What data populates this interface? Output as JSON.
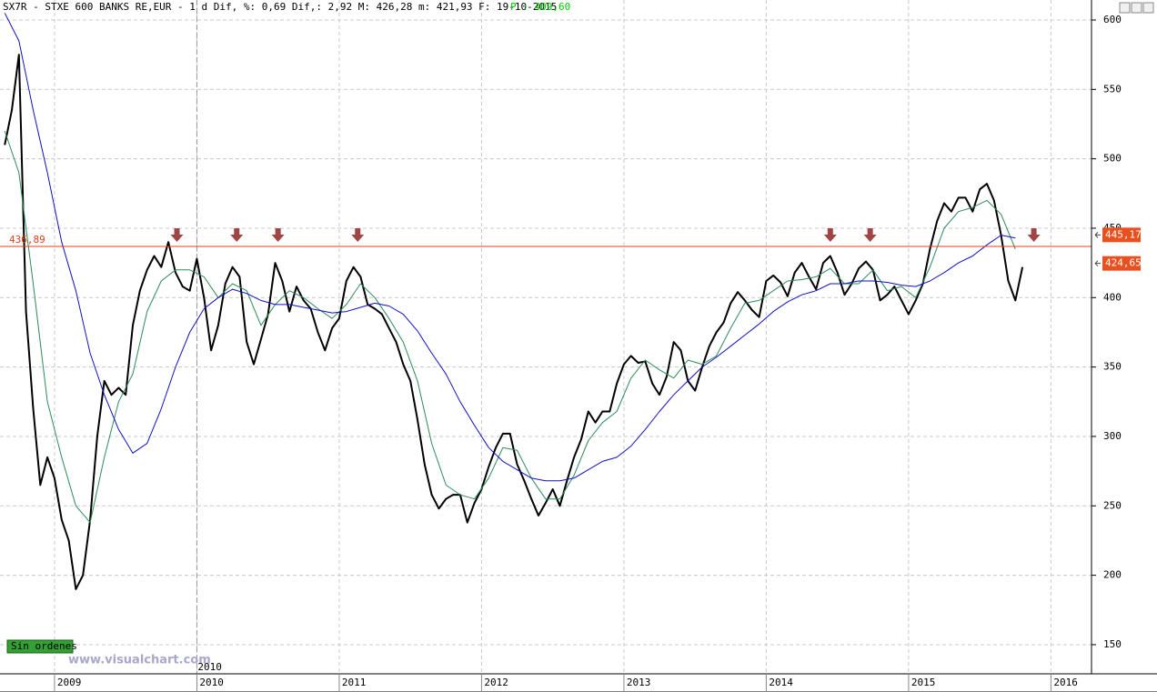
{
  "chart_data": {
    "type": "line",
    "title": "SX7R - STXE 600 BANKS RE,EUR -  1 d Dif, %: 0,69 Dif,: 2,92 M: 426,28 m: 421,93 F: 19-10-2015",
    "price_label": "P : 409,60",
    "status": "Sin ordenes",
    "watermark": "www.visualchart.com",
    "cursor": {
      "value": 2010,
      "label": "2010"
    },
    "xlim": [
      2008.617,
      2016.285
    ],
    "ylim": [
      129,
      614.4
    ],
    "xticks": [
      2009,
      2010,
      2011,
      2012,
      2013,
      2014,
      2015,
      2016
    ],
    "yticks": [
      150,
      200,
      250,
      300,
      350,
      400,
      450,
      500,
      550,
      600
    ],
    "grid": true,
    "level": {
      "value": 436.89,
      "label": "436,89",
      "color": "#e0401a"
    },
    "price_tags": [
      {
        "value": 445.17,
        "label": "445,17"
      },
      {
        "value": 424.65,
        "label": "424,65"
      }
    ],
    "arrows": [
      2009.86,
      2010.28,
      2010.57,
      2011.13,
      2014.45,
      2014.73,
      2015.88
    ],
    "series": [
      {
        "color": "#000000",
        "x": [
          2008.65,
          2008.7,
          2008.75,
          2008.8,
          2008.85,
          2008.9,
          2008.95,
          2009,
          2009.05,
          2009.1,
          2009.15,
          2009.2,
          2009.25,
          2009.3,
          2009.35,
          2009.4,
          2009.45,
          2009.5,
          2009.55,
          2009.6,
          2009.65,
          2009.7,
          2009.75,
          2009.8,
          2009.85,
          2009.9,
          2009.95,
          2010,
          2010.05,
          2010.1,
          2010.15,
          2010.2,
          2010.25,
          2010.3,
          2010.35,
          2010.4,
          2010.45,
          2010.5,
          2010.55,
          2010.6,
          2010.65,
          2010.7,
          2010.75,
          2010.8,
          2010.85,
          2010.9,
          2010.95,
          2011,
          2011.05,
          2011.1,
          2011.15,
          2011.2,
          2011.25,
          2011.3,
          2011.35,
          2011.4,
          2011.45,
          2011.5,
          2011.55,
          2011.6,
          2011.65,
          2011.7,
          2011.75,
          2011.8,
          2011.85,
          2011.9,
          2011.95,
          2012,
          2012.05,
          2012.1,
          2012.15,
          2012.2,
          2012.25,
          2012.3,
          2012.35,
          2012.4,
          2012.45,
          2012.5,
          2012.55,
          2012.6,
          2012.65,
          2012.7,
          2012.75,
          2012.8,
          2012.85,
          2012.9,
          2012.95,
          2013,
          2013.05,
          2013.1,
          2013.15,
          2013.2,
          2013.25,
          2013.3,
          2013.35,
          2013.4,
          2013.45,
          2013.5,
          2013.55,
          2013.6,
          2013.65,
          2013.7,
          2013.75,
          2013.8,
          2013.85,
          2013.9,
          2013.95,
          2014,
          2014.05,
          2014.1,
          2014.15,
          2014.2,
          2014.25,
          2014.3,
          2014.35,
          2014.4,
          2014.45,
          2014.5,
          2014.55,
          2014.6,
          2014.65,
          2014.7,
          2014.75,
          2014.8,
          2014.85,
          2014.9,
          2014.95,
          2015,
          2015.05,
          2015.1,
          2015.15,
          2015.2,
          2015.25,
          2015.3,
          2015.35,
          2015.4,
          2015.45,
          2015.5,
          2015.55,
          2015.6,
          2015.65,
          2015.7,
          2015.75,
          2015.8
        ],
        "values": [
          510,
          535,
          575,
          390,
          320,
          265,
          285,
          270,
          240,
          225,
          190,
          200,
          240,
          300,
          340,
          330,
          335,
          330,
          380,
          405,
          420,
          430,
          422,
          440,
          418,
          408,
          405,
          428,
          400,
          362,
          380,
          410,
          422,
          415,
          368,
          352,
          370,
          388,
          425,
          412,
          390,
          408,
          398,
          392,
          375,
          362,
          378,
          385,
          412,
          422,
          415,
          395,
          392,
          388,
          378,
          368,
          352,
          340,
          312,
          280,
          258,
          248,
          255,
          258,
          258,
          238,
          252,
          262,
          278,
          292,
          302,
          302,
          280,
          268,
          255,
          243,
          252,
          262,
          250,
          268,
          285,
          298,
          318,
          310,
          318,
          318,
          338,
          352,
          358,
          353,
          354,
          338,
          330,
          343,
          368,
          362,
          340,
          333,
          350,
          365,
          375,
          382,
          396,
          404,
          398,
          391,
          386,
          412,
          416,
          411,
          401,
          418,
          425,
          415,
          406,
          425,
          430,
          418,
          402,
          410,
          421,
          426,
          420,
          398,
          402,
          408,
          398,
          388,
          398,
          410,
          435,
          455,
          468,
          462,
          472,
          472,
          462,
          478,
          482,
          470,
          445,
          412,
          398,
          422
        ]
      },
      {
        "color": "#2e8b57",
        "x": [
          2008.65,
          2008.75,
          2008.85,
          2008.95,
          2009.05,
          2009.15,
          2009.25,
          2009.35,
          2009.45,
          2009.55,
          2009.65,
          2009.75,
          2009.85,
          2009.95,
          2010.05,
          2010.15,
          2010.25,
          2010.35,
          2010.45,
          2010.55,
          2010.65,
          2010.75,
          2010.85,
          2010.95,
          2011.05,
          2011.15,
          2011.25,
          2011.35,
          2011.45,
          2011.55,
          2011.65,
          2011.75,
          2011.85,
          2011.95,
          2012.05,
          2012.15,
          2012.25,
          2012.35,
          2012.45,
          2012.55,
          2012.65,
          2012.75,
          2012.85,
          2012.95,
          2013.05,
          2013.15,
          2013.25,
          2013.35,
          2013.45,
          2013.55,
          2013.65,
          2013.75,
          2013.85,
          2013.95,
          2014.05,
          2014.15,
          2014.25,
          2014.35,
          2014.45,
          2014.55,
          2014.65,
          2014.75,
          2014.85,
          2014.95,
          2015.05,
          2015.15,
          2015.25,
          2015.35,
          2015.45,
          2015.55,
          2015.65,
          2015.75
        ],
        "values": [
          520,
          490,
          410,
          325,
          285,
          250,
          238,
          285,
          325,
          345,
          390,
          412,
          420,
          420,
          415,
          400,
          410,
          405,
          380,
          395,
          405,
          400,
          392,
          385,
          395,
          410,
          400,
          385,
          368,
          340,
          295,
          265,
          258,
          255,
          270,
          292,
          290,
          270,
          255,
          255,
          272,
          297,
          310,
          318,
          342,
          355,
          348,
          342,
          355,
          352,
          358,
          378,
          396,
          398,
          405,
          412,
          413,
          415,
          421,
          410,
          410,
          420,
          405,
          408,
          400,
          422,
          450,
          462,
          465,
          470,
          460,
          435
        ]
      },
      {
        "color": "#1010c0",
        "x": [
          2008.65,
          2008.75,
          2008.85,
          2008.95,
          2009.05,
          2009.15,
          2009.25,
          2009.35,
          2009.45,
          2009.55,
          2009.65,
          2009.75,
          2009.85,
          2009.95,
          2010.05,
          2010.15,
          2010.25,
          2010.35,
          2010.45,
          2010.55,
          2010.65,
          2010.75,
          2010.85,
          2010.95,
          2011.05,
          2011.15,
          2011.25,
          2011.35,
          2011.45,
          2011.55,
          2011.65,
          2011.75,
          2011.85,
          2011.95,
          2012.05,
          2012.15,
          2012.25,
          2012.35,
          2012.45,
          2012.55,
          2012.65,
          2012.75,
          2012.85,
          2012.95,
          2013.05,
          2013.15,
          2013.25,
          2013.35,
          2013.45,
          2013.55,
          2013.65,
          2013.75,
          2013.85,
          2013.95,
          2014.05,
          2014.15,
          2014.25,
          2014.35,
          2014.45,
          2014.55,
          2014.65,
          2014.75,
          2014.85,
          2014.95,
          2015.05,
          2015.15,
          2015.25,
          2015.35,
          2015.45,
          2015.55,
          2015.65,
          2015.75
        ],
        "values": [
          605,
          585,
          535,
          490,
          440,
          405,
          360,
          330,
          305,
          288,
          295,
          320,
          350,
          375,
          392,
          400,
          406,
          403,
          398,
          395,
          395,
          393,
          391,
          389,
          390,
          393,
          396,
          394,
          388,
          376,
          360,
          345,
          325,
          308,
          292,
          282,
          276,
          270,
          268,
          268,
          270,
          276,
          282,
          285,
          293,
          305,
          318,
          330,
          340,
          350,
          357,
          365,
          373,
          381,
          390,
          397,
          402,
          405,
          410,
          410,
          412,
          412,
          411,
          409,
          408,
          412,
          418,
          425,
          430,
          438,
          445,
          443
        ]
      }
    ]
  }
}
